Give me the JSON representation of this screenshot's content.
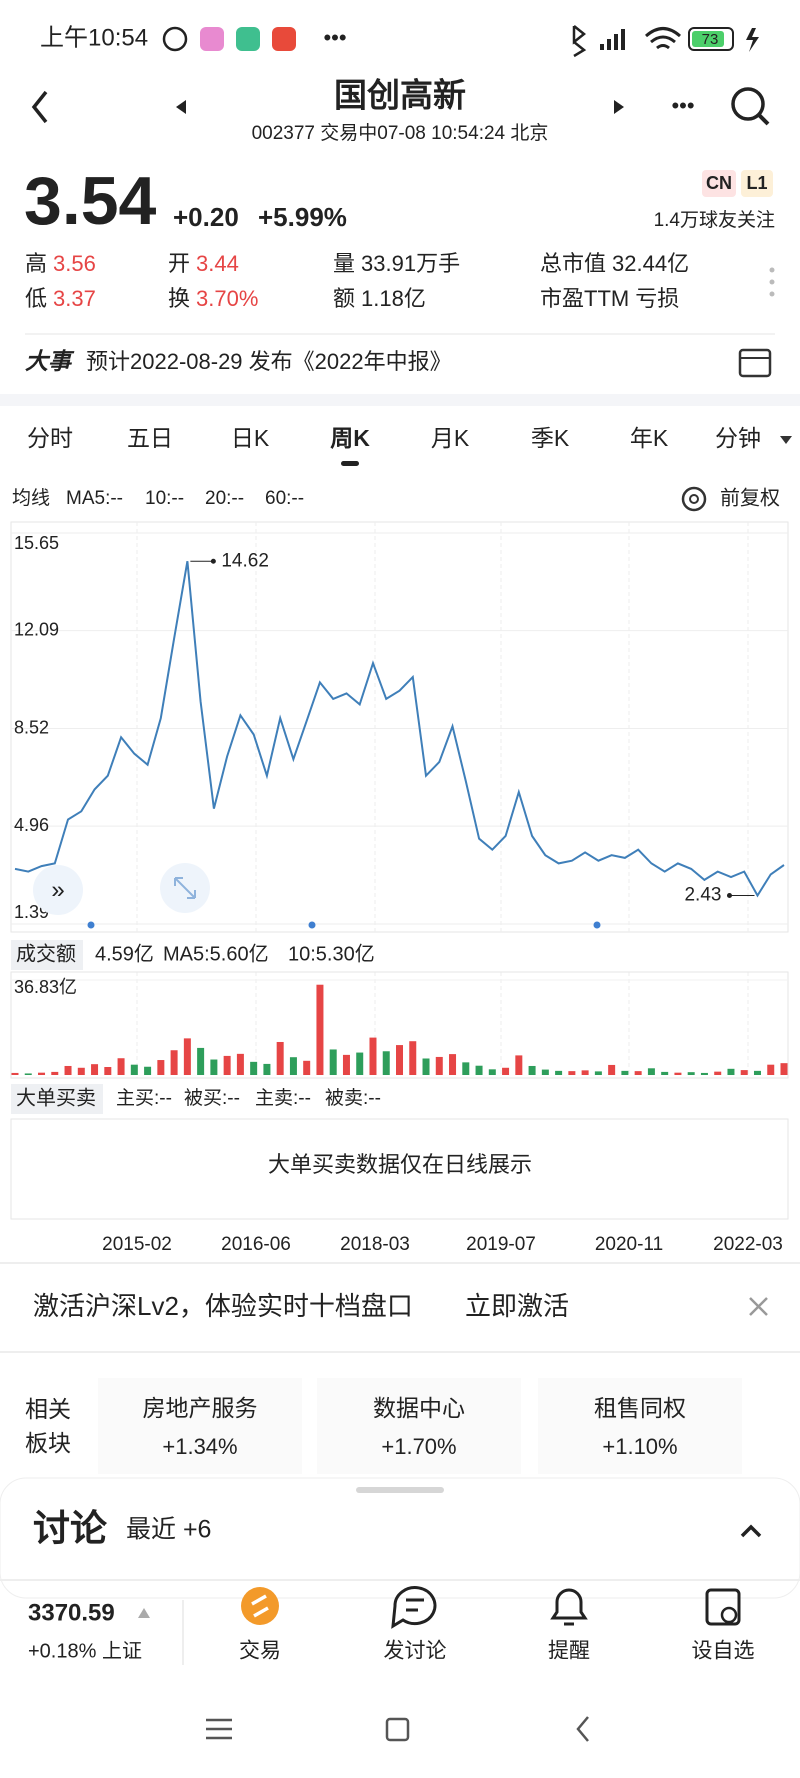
{
  "status_bar": {
    "time": "上午10:54",
    "battery": "73"
  },
  "header": {
    "title": "国创高新",
    "subtitle": "002377 交易中07-08 10:54:24 北京"
  },
  "quote": {
    "price": "3.54",
    "change": "+0.20",
    "change_pct": "+5.99%",
    "badges": [
      "CN",
      "L1"
    ],
    "followers": "1.4万球友关注"
  },
  "stats": [
    {
      "label": "高",
      "value": "3.56"
    },
    {
      "label": "开",
      "value": "3.44"
    },
    {
      "label": "量",
      "value": "33.91万手"
    },
    {
      "label": "总市值",
      "value": "32.44亿"
    },
    {
      "label": "低",
      "value": "3.37"
    },
    {
      "label": "换",
      "value": "3.70%"
    },
    {
      "label": "额",
      "value": "1.18亿"
    },
    {
      "label": "市盈TTM",
      "value": "亏损"
    }
  ],
  "event": {
    "label": "大事",
    "text": "预计2022-08-29 发布《2022年中报》"
  },
  "tabs": [
    "分时",
    "五日",
    "日K",
    "周K",
    "月K",
    "季K",
    "年K",
    "分钟"
  ],
  "active_tab": 3,
  "ma_legend": {
    "label": "均线",
    "items": [
      {
        "text": "MA5:--",
        "color": "#e8a020"
      },
      {
        "text": "10:--",
        "color": "#3f86c4"
      },
      {
        "text": "20:--",
        "color": "#b0409a"
      },
      {
        "text": "60:--",
        "color": "#e8c020"
      }
    ],
    "adjust": "前复权"
  },
  "price_chart": {
    "type": "line",
    "color": "#3f7fb9",
    "ylim": [
      1.39,
      15.65
    ],
    "yticks": [
      1.39,
      4.96,
      8.52,
      12.09,
      15.65
    ],
    "values": [
      3.4,
      3.3,
      3.5,
      3.6,
      5.2,
      5.5,
      6.3,
      6.8,
      8.2,
      7.6,
      7.2,
      8.9,
      11.8,
      14.62,
      9.5,
      5.6,
      7.5,
      9.0,
      8.3,
      6.8,
      8.9,
      7.4,
      8.8,
      10.2,
      9.6,
      9.8,
      9.4,
      10.9,
      9.6,
      9.9,
      10.4,
      6.8,
      7.3,
      8.6,
      6.6,
      4.5,
      4.1,
      4.6,
      6.2,
      4.6,
      3.9,
      3.6,
      3.7,
      4.0,
      3.7,
      3.9,
      3.8,
      4.1,
      3.6,
      3.3,
      3.6,
      3.4,
      3.0,
      3.3,
      3.1,
      3.3,
      2.43,
      3.2,
      3.54
    ],
    "high": 14.62,
    "low": 2.43
  },
  "volume_chart": {
    "type": "bar",
    "label": "成交额",
    "current": "4.59亿",
    "ma5": "MA5:5.60亿",
    "ma10": "10:5.30亿",
    "ylim": [
      0,
      36.83
    ],
    "yticks": [
      {
        "value": 36.83,
        "label": "36.83亿"
      }
    ],
    "up_color": "#e64545",
    "down_color": "#2e9e5b",
    "values": [
      0.8,
      0.6,
      0.9,
      1.2,
      3.5,
      2.8,
      4.2,
      3.1,
      6.5,
      4.0,
      3.2,
      5.8,
      9.6,
      14.2,
      10.5,
      6.0,
      7.4,
      8.2,
      5.1,
      4.3,
      12.8,
      6.9,
      5.5,
      35.0,
      9.9,
      7.8,
      8.7,
      14.5,
      9.2,
      11.6,
      13.1,
      6.4,
      7.0,
      8.1,
      4.9,
      3.6,
      2.2,
      2.8,
      7.6,
      3.5,
      2.1,
      1.6,
      1.5,
      1.8,
      1.4,
      3.9,
      1.6,
      1.5,
      2.6,
      1.2,
      0.9,
      1.1,
      0.8,
      1.3,
      2.4,
      1.9,
      1.6,
      4.0,
      4.59
    ]
  },
  "xticks": [
    "2015-02",
    "2016-06",
    "2018-03",
    "2019-07",
    "2020-11",
    "2022-03"
  ],
  "big_orders": {
    "label": "大单买卖",
    "items": [
      {
        "text": "主买:--",
        "color": "#d04040"
      },
      {
        "text": "被买:--",
        "color": "#a02a2a"
      },
      {
        "text": "主卖:--",
        "color": "#2e9e5b"
      },
      {
        "text": "被卖:--",
        "color": "#1f6e40"
      }
    ],
    "note": "大单买卖数据仅在日线展示"
  },
  "banner": {
    "text": "激活沪深Lv2，体验实时十档盘口",
    "action": "立即激活"
  },
  "related": {
    "label": [
      "相关",
      "板块"
    ],
    "items": [
      {
        "name": "房地产服务",
        "change": "+1.34%"
      },
      {
        "name": "数据中心",
        "change": "+1.70%"
      },
      {
        "name": "租售同权",
        "change": "+1.10%"
      }
    ]
  },
  "discussion": {
    "title": "讨论",
    "recent": "最近 +6"
  },
  "index": {
    "value": "3370.59",
    "change": "+0.18% 上证"
  },
  "nav": [
    "交易",
    "发讨论",
    "提醒",
    "设自选"
  ]
}
